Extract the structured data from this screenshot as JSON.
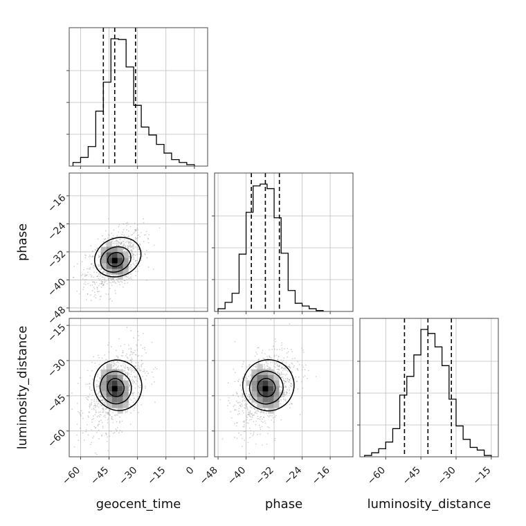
{
  "chart_data": {
    "type": "corner",
    "parameters": [
      "geocent_time",
      "phase",
      "luminosity_distance"
    ],
    "axis_labels": {
      "geocent_time": "geocent_time",
      "phase": "phase",
      "luminosity_distance": "luminosity_distance"
    },
    "ranges": {
      "geocent_time": [
        -66,
        7
      ],
      "phase": [
        -49,
        -9.5
      ],
      "luminosity_distance": [
        -71,
        -12
      ]
    },
    "ticks": {
      "geocent_time": [
        -60,
        -45,
        -30,
        -15,
        0
      ],
      "phase": [
        -48,
        -40,
        -32,
        -24,
        -16
      ],
      "luminosity_distance": [
        -60,
        -45,
        -30,
        -15
      ]
    },
    "tick_labels": {
      "geocent_time": [
        "−60",
        "−45",
        "−30",
        "−15",
        "0"
      ],
      "phase": [
        "−48",
        "−40",
        "−32",
        "−24",
        "−16"
      ],
      "luminosity_distance": [
        "−60",
        "−45",
        "−30",
        "−15"
      ]
    },
    "grid": true,
    "quantiles": {
      "geocent_time": [
        -48,
        -42,
        -31
      ],
      "phase": [
        -38.5,
        -34.5,
        -30.5
      ],
      "luminosity_distance": [
        -52,
        -42,
        -32
      ]
    },
    "histograms": {
      "geocent_time": {
        "bins": [
          -64,
          -60,
          -56,
          -52,
          -48,
          -44,
          -40,
          -36,
          -32,
          -28,
          -24,
          -20,
          -16,
          -12,
          -8,
          -4,
          0
        ],
        "counts": [
          0.5,
          1.2,
          2.7,
          7.6,
          11.6,
          17.6,
          17.5,
          13.7,
          8.4,
          5.4,
          4.3,
          3.0,
          1.8,
          0.9,
          0.5,
          0.2
        ]
      },
      "phase": {
        "bins": [
          -48,
          -46,
          -44,
          -42,
          -40,
          -38,
          -36,
          -34,
          -32,
          -30,
          -28,
          -26,
          -24,
          -22,
          -20,
          -18
        ],
        "counts": [
          0.3,
          1.0,
          2.0,
          6.3,
          10.9,
          13.8,
          14.0,
          13.5,
          10.3,
          6.4,
          2.3,
          0.9,
          0.6,
          0.3,
          0.1
        ]
      },
      "luminosity_distance": {
        "bins": [
          -69,
          -66,
          -63,
          -60,
          -57,
          -54,
          -51,
          -48,
          -45,
          -42,
          -39,
          -36,
          -33,
          -30,
          -27,
          -24,
          -21,
          -18,
          -15
        ],
        "counts": [
          0.1,
          0.3,
          0.6,
          1.1,
          2.1,
          4.6,
          6.0,
          7.6,
          9.5,
          9.2,
          8.2,
          6.8,
          4.3,
          2.3,
          1.3,
          0.7,
          0.5,
          0.1
        ]
      }
    },
    "posteriors_2d": {
      "phase_vs_geocent_time": {
        "center": [
          -42,
          -34.5
        ],
        "spread": [
          6,
          3.5
        ]
      },
      "luminosity_distance_vs_geocent_time": {
        "center": [
          -42,
          -42
        ],
        "spread": [
          6,
          7
        ]
      },
      "luminosity_distance_vs_phase": {
        "center": [
          -34.5,
          -42
        ],
        "spread": [
          3.5,
          7
        ]
      }
    }
  }
}
